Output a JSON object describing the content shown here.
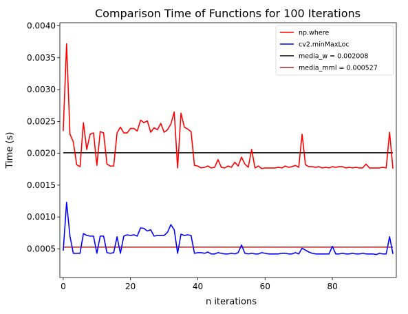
{
  "chart_data": {
    "type": "line",
    "title": "Comparison Time of Functions for 100 Iterations",
    "xlabel": "n iterations",
    "ylabel": "Time (s)",
    "xlim": [
      -1,
      99
    ],
    "ylim": [
      5e-05,
      0.00405
    ],
    "xticks": [
      0,
      20,
      40,
      60,
      80
    ],
    "xtick_labels": [
      "0",
      "20",
      "40",
      "60",
      "80"
    ],
    "yticks": [
      0.0005,
      0.001,
      0.0015,
      0.002,
      0.0025,
      0.003,
      0.0035,
      0.004
    ],
    "ytick_labels": [
      "0.0005",
      "0.0010",
      "0.0015",
      "0.0020",
      "0.0025",
      "0.0030",
      "0.0035",
      "0.0040"
    ],
    "grid": false,
    "legend_position": "top-right",
    "series": [
      {
        "name": "np.where",
        "color": "#ff0000",
        "kind": "line",
        "x": [
          0,
          1,
          2,
          3,
          4,
          5,
          6,
          7,
          8,
          9,
          10,
          11,
          12,
          13,
          14,
          15,
          16,
          17,
          18,
          19,
          20,
          21,
          22,
          23,
          24,
          25,
          26,
          27,
          28,
          29,
          30,
          31,
          32,
          33,
          34,
          35,
          36,
          37,
          38,
          39,
          40,
          41,
          42,
          43,
          44,
          45,
          46,
          47,
          48,
          49,
          50,
          51,
          52,
          53,
          54,
          55,
          56,
          57,
          58,
          59,
          60,
          61,
          62,
          63,
          64,
          65,
          66,
          67,
          68,
          69,
          70,
          71,
          72,
          73,
          74,
          75,
          76,
          77,
          78,
          79,
          80,
          81,
          82,
          83,
          84,
          85,
          86,
          87,
          88,
          89,
          90,
          91,
          92,
          93,
          94,
          95,
          96,
          97,
          98
        ],
        "values": [
          0.00235,
          0.00372,
          0.0023,
          0.00218,
          0.00182,
          0.00179,
          0.00248,
          0.00206,
          0.0023,
          0.00232,
          0.00181,
          0.00234,
          0.00232,
          0.00183,
          0.0018,
          0.0018,
          0.00232,
          0.00241,
          0.00232,
          0.00232,
          0.00239,
          0.00239,
          0.00235,
          0.00252,
          0.00248,
          0.00251,
          0.00233,
          0.0024,
          0.00237,
          0.00247,
          0.00233,
          0.00237,
          0.00246,
          0.00265,
          0.00177,
          0.00263,
          0.00241,
          0.00238,
          0.00234,
          0.00181,
          0.0018,
          0.00177,
          0.00178,
          0.0018,
          0.00177,
          0.00178,
          0.0019,
          0.00178,
          0.00177,
          0.0018,
          0.00178,
          0.00186,
          0.0018,
          0.00194,
          0.00183,
          0.00178,
          0.00206,
          0.00177,
          0.0018,
          0.00176,
          0.00177,
          0.00177,
          0.00177,
          0.00177,
          0.00178,
          0.00177,
          0.0018,
          0.00178,
          0.00179,
          0.00181,
          0.00178,
          0.0023,
          0.00182,
          0.00179,
          0.00179,
          0.00178,
          0.00179,
          0.00177,
          0.00178,
          0.00177,
          0.00179,
          0.00178,
          0.00179,
          0.00179,
          0.00177,
          0.00178,
          0.00177,
          0.00178,
          0.00177,
          0.00177,
          0.00183,
          0.00177,
          0.00177,
          0.00177,
          0.00177,
          0.00178,
          0.00177,
          0.00233,
          0.00176
        ]
      },
      {
        "name": "cv2.minMaxLoc",
        "color": "#0000ff",
        "kind": "line",
        "x": [
          0,
          1,
          2,
          3,
          4,
          5,
          6,
          7,
          8,
          9,
          10,
          11,
          12,
          13,
          14,
          15,
          16,
          17,
          18,
          19,
          20,
          21,
          22,
          23,
          24,
          25,
          26,
          27,
          28,
          29,
          30,
          31,
          32,
          33,
          34,
          35,
          36,
          37,
          38,
          39,
          40,
          41,
          42,
          43,
          44,
          45,
          46,
          47,
          48,
          49,
          50,
          51,
          52,
          53,
          54,
          55,
          56,
          57,
          58,
          59,
          60,
          61,
          62,
          63,
          64,
          65,
          66,
          67,
          68,
          69,
          70,
          71,
          72,
          73,
          74,
          75,
          76,
          77,
          78,
          79,
          80,
          81,
          82,
          83,
          84,
          85,
          86,
          87,
          88,
          89,
          90,
          91,
          92,
          93,
          94,
          95,
          96,
          97,
          98
        ],
        "values": [
          0.00047,
          0.00123,
          0.0007,
          0.00043,
          0.00043,
          0.00043,
          0.00074,
          0.00071,
          0.0007,
          0.0007,
          0.00043,
          0.0007,
          0.0007,
          0.00044,
          0.00043,
          0.00044,
          0.00069,
          0.00043,
          0.0007,
          0.00072,
          0.00071,
          0.00072,
          0.0007,
          0.00083,
          0.00082,
          0.00078,
          0.0008,
          0.0007,
          0.00071,
          0.00071,
          0.00071,
          0.00076,
          0.00088,
          0.0008,
          0.00043,
          0.00073,
          0.00071,
          0.00072,
          0.00071,
          0.00043,
          0.00044,
          0.00044,
          0.00043,
          0.00045,
          0.00042,
          0.00042,
          0.00044,
          0.00043,
          0.00042,
          0.00042,
          0.00043,
          0.00042,
          0.00044,
          0.00056,
          0.00043,
          0.00042,
          0.00043,
          0.00042,
          0.00042,
          0.00044,
          0.00043,
          0.00042,
          0.00042,
          0.00042,
          0.00042,
          0.00043,
          0.00043,
          0.00042,
          0.00042,
          0.00044,
          0.00042,
          0.00051,
          0.00048,
          0.00045,
          0.00043,
          0.00042,
          0.00042,
          0.00042,
          0.00042,
          0.00042,
          0.00054,
          0.00042,
          0.00042,
          0.00043,
          0.00042,
          0.00042,
          0.00043,
          0.00042,
          0.00042,
          0.00043,
          0.00042,
          0.00042,
          0.00042,
          0.00041,
          0.00043,
          0.00042,
          0.00042,
          0.00069,
          0.00042
        ]
      },
      {
        "name": "media_w = 0.002008",
        "color": "#000000",
        "kind": "hline",
        "value": 0.002008
      },
      {
        "name": "media_mml = 0.000527",
        "color": "#b22222",
        "kind": "hline",
        "value": 0.000527
      }
    ]
  }
}
